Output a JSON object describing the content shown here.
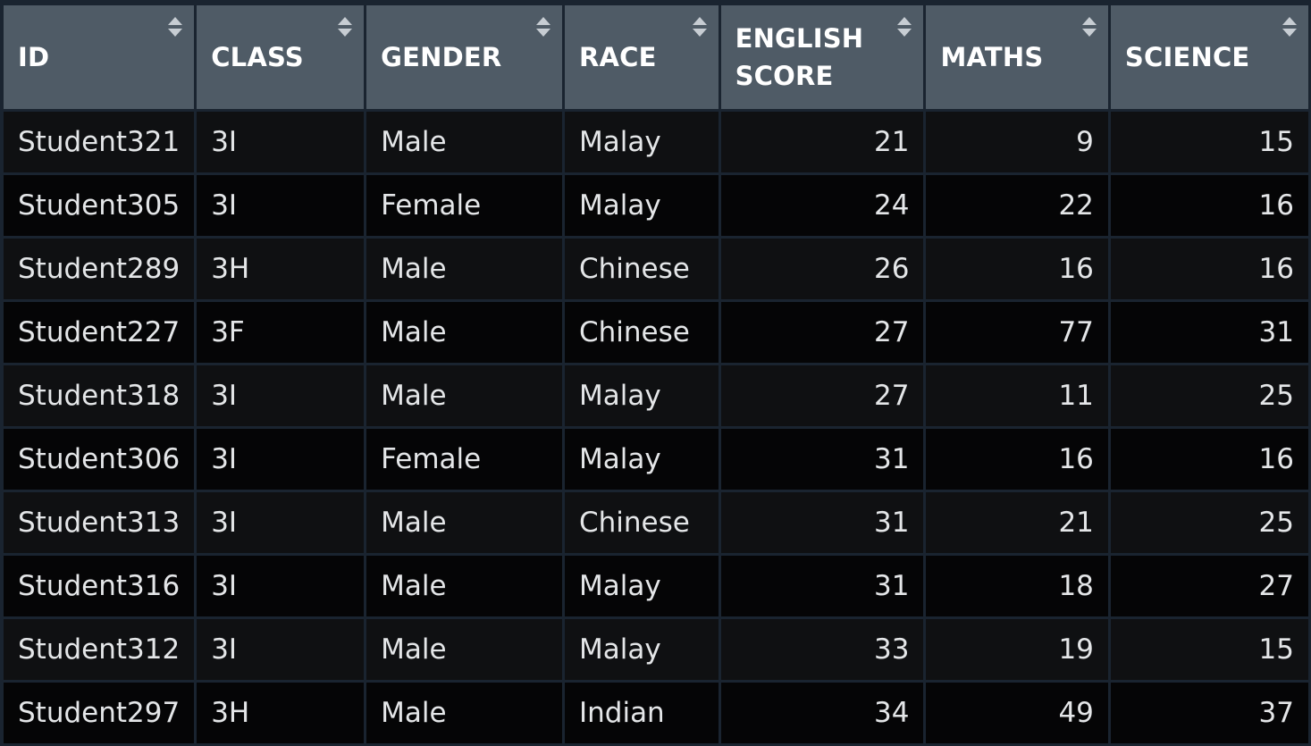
{
  "table": {
    "columns": [
      {
        "label": "ID",
        "align": "left"
      },
      {
        "label": "CLASS",
        "align": "left"
      },
      {
        "label": "GENDER",
        "align": "left"
      },
      {
        "label": "RACE",
        "align": "left"
      },
      {
        "label": "ENGLISH SCORE",
        "align": "right"
      },
      {
        "label": "MATHS",
        "align": "right"
      },
      {
        "label": "SCIENCE",
        "align": "right"
      }
    ],
    "rows": [
      [
        "Student321",
        "3I",
        "Male",
        "Malay",
        "21",
        "9",
        "15"
      ],
      [
        "Student305",
        "3I",
        "Female",
        "Malay",
        "24",
        "22",
        "16"
      ],
      [
        "Student289",
        "3H",
        "Male",
        "Chinese",
        "26",
        "16",
        "16"
      ],
      [
        "Student227",
        "3F",
        "Male",
        "Chinese",
        "27",
        "77",
        "31"
      ],
      [
        "Student318",
        "3I",
        "Male",
        "Malay",
        "27",
        "11",
        "25"
      ],
      [
        "Student306",
        "3I",
        "Female",
        "Malay",
        "31",
        "16",
        "16"
      ],
      [
        "Student313",
        "3I",
        "Male",
        "Chinese",
        "31",
        "21",
        "25"
      ],
      [
        "Student316",
        "3I",
        "Male",
        "Malay",
        "31",
        "18",
        "27"
      ],
      [
        "Student312",
        "3I",
        "Male",
        "Malay",
        "33",
        "19",
        "15"
      ],
      [
        "Student297",
        "3H",
        "Male",
        "Indian",
        "34",
        "49",
        "37"
      ]
    ],
    "sort_icon": "sort-updown-icon"
  },
  "colors": {
    "header_bg": "#4f5b66",
    "grid_line": "#1a2430",
    "row_bg_a": "#0f1012",
    "row_bg_b": "#050506",
    "text": "#e4e6e8"
  }
}
